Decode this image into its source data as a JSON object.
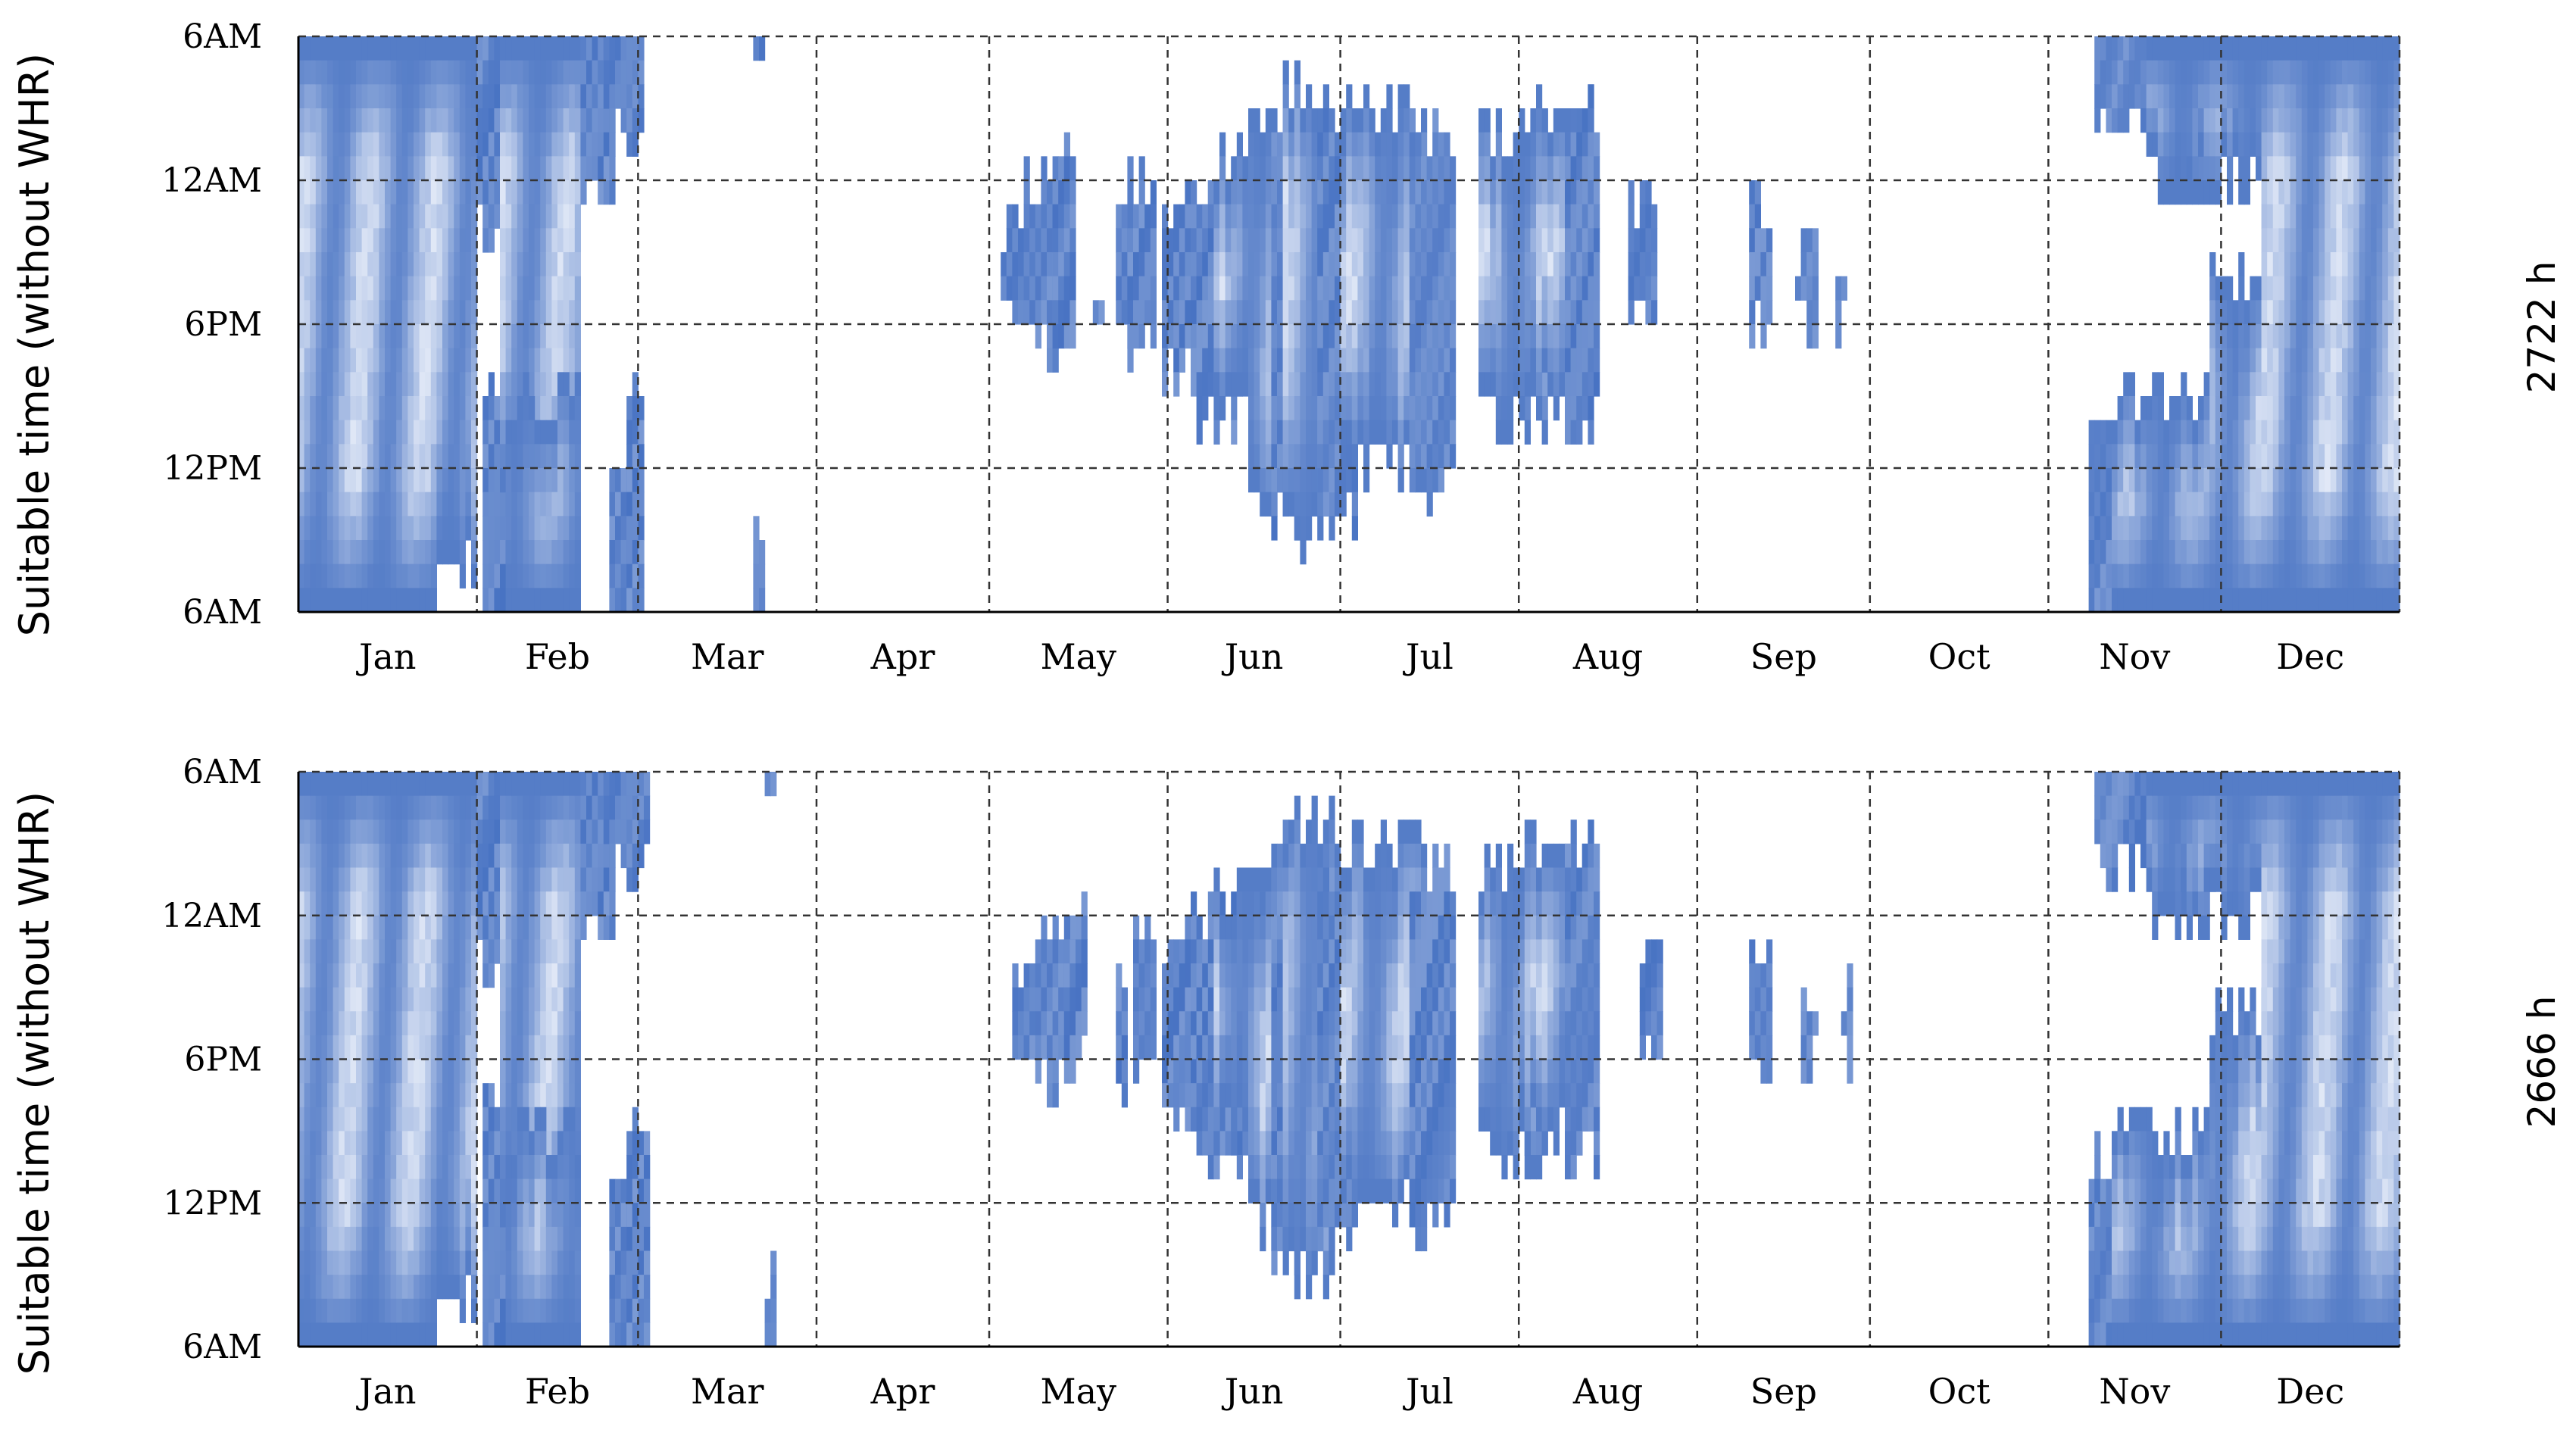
{
  "colors": {
    "dark": "#3f6cc0",
    "light": "#f4f7fd",
    "grid": "#333333",
    "axis": "#000000"
  },
  "chart_data": [
    {
      "type": "heatmap",
      "ylabel": "Suitable time (without WHR)",
      "total_label": "2722 h",
      "x_tick_labels": [
        "Jan",
        "Feb",
        "Mar",
        "Apr",
        "May",
        "Jun",
        "Jul",
        "Aug",
        "Sep",
        "Oct",
        "Nov",
        "Dec"
      ],
      "y_tick_labels": [
        "6AM",
        "12AM",
        "6PM",
        "12PM",
        "6AM"
      ],
      "grid": true,
      "periods": [
        {
          "start": 1,
          "end": 24,
          "top": 0.0,
          "bottom": 24.0,
          "light": true
        },
        {
          "start": 25,
          "end": 31,
          "top": 0.0,
          "bottom": 22.0,
          "light": true
        },
        {
          "start": 32,
          "end": 36,
          "top": 0.0,
          "bottom": 8.0,
          "light": false
        },
        {
          "start": 33,
          "end": 37,
          "top": 14.0,
          "bottom": 24.0,
          "light": false
        },
        {
          "start": 36,
          "end": 49,
          "top": 0.0,
          "bottom": 20.0,
          "light": true
        },
        {
          "start": 37,
          "end": 49,
          "top": 15.0,
          "bottom": 24.0,
          "light": true
        },
        {
          "start": 50,
          "end": 55,
          "top": 0.0,
          "bottom": 7.0,
          "light": false
        },
        {
          "start": 54,
          "end": 60,
          "top": 0.0,
          "bottom": 4.0,
          "light": false
        },
        {
          "start": 55,
          "end": 60,
          "top": 17.0,
          "bottom": 24.0,
          "light": false
        },
        {
          "start": 58,
          "end": 60,
          "top": 14.0,
          "bottom": 24.0,
          "light": false
        },
        {
          "start": 80,
          "end": 81,
          "top": 0.0,
          "bottom": 2.0,
          "light": false
        },
        {
          "start": 80,
          "end": 81,
          "top": 21.0,
          "bottom": 24.0,
          "light": false
        },
        {
          "start": 123,
          "end": 126,
          "top": 8.5,
          "bottom": 11.5,
          "light": false
        },
        {
          "start": 127,
          "end": 134,
          "top": 6.0,
          "bottom": 13.0,
          "light": false
        },
        {
          "start": 132,
          "end": 135,
          "top": 5.0,
          "bottom": 12.0,
          "light": false
        },
        {
          "start": 139,
          "end": 140,
          "top": 10.0,
          "bottom": 11.0,
          "light": false
        },
        {
          "start": 143,
          "end": 146,
          "top": 8.0,
          "bottom": 12.0,
          "light": false
        },
        {
          "start": 145,
          "end": 149,
          "top": 6.0,
          "bottom": 13.0,
          "light": false
        },
        {
          "start": 151,
          "end": 160,
          "top": 7.0,
          "bottom": 14.0,
          "light": false
        },
        {
          "start": 156,
          "end": 164,
          "top": 6.0,
          "bottom": 16.0,
          "light": false
        },
        {
          "start": 160,
          "end": 168,
          "top": 5.0,
          "bottom": 15.0,
          "light": true
        },
        {
          "start": 166,
          "end": 171,
          "top": 4.0,
          "bottom": 19.0,
          "light": true
        },
        {
          "start": 170,
          "end": 174,
          "top": 3.0,
          "bottom": 20.0,
          "light": false
        },
        {
          "start": 172,
          "end": 180,
          "top": 2.0,
          "bottom": 21.0,
          "light": true
        },
        {
          "start": 178,
          "end": 184,
          "top": 4.0,
          "bottom": 20.0,
          "light": false
        },
        {
          "start": 182,
          "end": 196,
          "top": 3.0,
          "bottom": 18.0,
          "light": true
        },
        {
          "start": 194,
          "end": 201,
          "top": 4.0,
          "bottom": 19.0,
          "light": false
        },
        {
          "start": 206,
          "end": 217,
          "top": 4.0,
          "bottom": 16.0,
          "light": true
        },
        {
          "start": 213,
          "end": 225,
          "top": 3.0,
          "bottom": 15.0,
          "light": true
        },
        {
          "start": 221,
          "end": 226,
          "top": 3.0,
          "bottom": 16.0,
          "light": false
        },
        {
          "start": 232,
          "end": 236,
          "top": 7.0,
          "bottom": 12.0,
          "light": false
        },
        {
          "start": 253,
          "end": 256,
          "top": 7.0,
          "bottom": 12.0,
          "light": false
        },
        {
          "start": 261,
          "end": 264,
          "top": 9.0,
          "bottom": 11.5,
          "light": false
        },
        {
          "start": 268,
          "end": 269,
          "top": 9.0,
          "bottom": 11.5,
          "light": false
        },
        {
          "start": 312,
          "end": 316,
          "top": 16.0,
          "bottom": 24.0,
          "light": false
        },
        {
          "start": 313,
          "end": 326,
          "top": 0.0,
          "bottom": 4.0,
          "light": false
        },
        {
          "start": 316,
          "end": 333,
          "top": 15.0,
          "bottom": 24.0,
          "light": true
        },
        {
          "start": 322,
          "end": 333,
          "top": 0.0,
          "bottom": 6.0,
          "light": true
        },
        {
          "start": 326,
          "end": 345,
          "top": 0.0,
          "bottom": 6.0,
          "light": true
        },
        {
          "start": 333,
          "end": 345,
          "top": 10.0,
          "bottom": 24.0,
          "light": true
        },
        {
          "start": 342,
          "end": 365,
          "top": 0.0,
          "bottom": 24.0,
          "light": true
        }
      ]
    },
    {
      "type": "heatmap",
      "ylabel": "Suitable time (without WHR)",
      "total_label": "2666 h",
      "x_tick_labels": [
        "Jan",
        "Feb",
        "Mar",
        "Apr",
        "May",
        "Jun",
        "Jul",
        "Aug",
        "Sep",
        "Oct",
        "Nov",
        "Dec"
      ],
      "y_tick_labels": [
        "6AM",
        "12AM",
        "6PM",
        "12PM",
        "6AM"
      ],
      "grid": true,
      "periods": [
        {
          "start": 1,
          "end": 24,
          "top": 0.0,
          "bottom": 24.0,
          "light": true
        },
        {
          "start": 25,
          "end": 31,
          "top": 0.0,
          "bottom": 22.0,
          "light": true
        },
        {
          "start": 32,
          "end": 36,
          "top": 0.0,
          "bottom": 8.0,
          "light": false
        },
        {
          "start": 33,
          "end": 38,
          "top": 14.0,
          "bottom": 24.0,
          "light": false
        },
        {
          "start": 36,
          "end": 49,
          "top": 0.0,
          "bottom": 20.0,
          "light": true
        },
        {
          "start": 37,
          "end": 49,
          "top": 15.0,
          "bottom": 24.0,
          "light": true
        },
        {
          "start": 50,
          "end": 55,
          "top": 0.0,
          "bottom": 7.0,
          "light": false
        },
        {
          "start": 54,
          "end": 61,
          "top": 0.0,
          "bottom": 4.0,
          "light": false
        },
        {
          "start": 55,
          "end": 61,
          "top": 17.0,
          "bottom": 24.0,
          "light": false
        },
        {
          "start": 58,
          "end": 61,
          "top": 14.0,
          "bottom": 24.0,
          "light": false
        },
        {
          "start": 82,
          "end": 83,
          "top": 0.0,
          "bottom": 2.0,
          "light": false
        },
        {
          "start": 82,
          "end": 83,
          "top": 21.0,
          "bottom": 24.0,
          "light": false
        },
        {
          "start": 125,
          "end": 128,
          "top": 9.0,
          "bottom": 11.5,
          "light": false
        },
        {
          "start": 129,
          "end": 136,
          "top": 7.0,
          "bottom": 13.0,
          "light": false
        },
        {
          "start": 134,
          "end": 137,
          "top": 6.0,
          "bottom": 12.0,
          "light": false
        },
        {
          "start": 143,
          "end": 144,
          "top": 8.0,
          "bottom": 13.0,
          "light": false
        },
        {
          "start": 146,
          "end": 149,
          "top": 7.0,
          "bottom": 13.0,
          "light": false
        },
        {
          "start": 151,
          "end": 160,
          "top": 7.0,
          "bottom": 14.0,
          "light": false
        },
        {
          "start": 156,
          "end": 165,
          "top": 6.0,
          "bottom": 16.0,
          "light": false
        },
        {
          "start": 160,
          "end": 168,
          "top": 5.0,
          "bottom": 15.0,
          "light": true
        },
        {
          "start": 166,
          "end": 171,
          "top": 4.0,
          "bottom": 19.0,
          "light": true
        },
        {
          "start": 170,
          "end": 174,
          "top": 3.0,
          "bottom": 20.0,
          "light": false
        },
        {
          "start": 172,
          "end": 180,
          "top": 2.0,
          "bottom": 21.0,
          "light": true
        },
        {
          "start": 178,
          "end": 184,
          "top": 4.0,
          "bottom": 20.0,
          "light": false
        },
        {
          "start": 182,
          "end": 196,
          "top": 3.0,
          "bottom": 18.0,
          "light": true
        },
        {
          "start": 194,
          "end": 201,
          "top": 4.0,
          "bottom": 19.0,
          "light": false
        },
        {
          "start": 206,
          "end": 217,
          "top": 4.0,
          "bottom": 16.0,
          "light": true
        },
        {
          "start": 213,
          "end": 225,
          "top": 3.0,
          "bottom": 15.0,
          "light": true
        },
        {
          "start": 221,
          "end": 226,
          "top": 3.0,
          "bottom": 16.0,
          "light": false
        },
        {
          "start": 234,
          "end": 237,
          "top": 8.0,
          "bottom": 12.0,
          "light": false
        },
        {
          "start": 253,
          "end": 256,
          "top": 8.0,
          "bottom": 12.0,
          "light": false
        },
        {
          "start": 262,
          "end": 264,
          "top": 9.0,
          "bottom": 11.5,
          "light": false
        },
        {
          "start": 269,
          "end": 270,
          "top": 9.0,
          "bottom": 11.5,
          "light": false
        },
        {
          "start": 312,
          "end": 316,
          "top": 16.0,
          "bottom": 24.0,
          "light": false
        },
        {
          "start": 313,
          "end": 326,
          "top": 0.0,
          "bottom": 4.0,
          "light": false
        },
        {
          "start": 316,
          "end": 333,
          "top": 15.0,
          "bottom": 24.0,
          "light": true
        },
        {
          "start": 322,
          "end": 333,
          "top": 0.0,
          "bottom": 6.0,
          "light": true
        },
        {
          "start": 326,
          "end": 345,
          "top": 0.0,
          "bottom": 6.0,
          "light": true
        },
        {
          "start": 333,
          "end": 345,
          "top": 10.0,
          "bottom": 24.0,
          "light": true
        },
        {
          "start": 342,
          "end": 365,
          "top": 0.0,
          "bottom": 24.0,
          "light": true
        }
      ]
    }
  ]
}
